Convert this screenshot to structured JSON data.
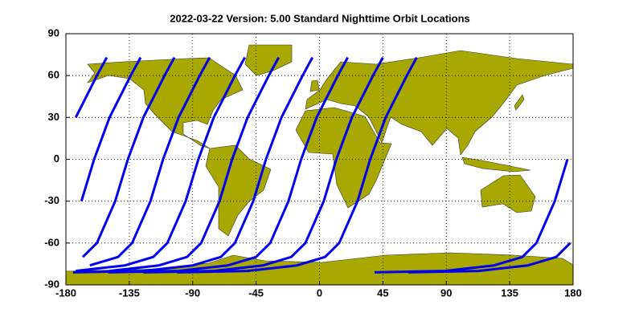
{
  "chart_data": {
    "type": "line",
    "title": "2022-03-22    Version: 5.00  Standard    Nighttime Orbit Locations",
    "xlim": [
      -180,
      180
    ],
    "ylim": [
      -90,
      90
    ],
    "xticks": [
      -180,
      -135,
      -90,
      -45,
      0,
      45,
      90,
      135,
      180
    ],
    "yticks": [
      -90,
      -60,
      -30,
      0,
      30,
      60,
      90
    ],
    "grid": true,
    "color": "#0000ee",
    "series": [
      {
        "x": [
          -151,
          -158,
          -173,
          null,
          176,
          167,
          154,
          144,
          124,
          89,
          39
        ],
        "values": [
          73,
          60,
          30,
          null,
          0,
          -30,
          -60,
          -70,
          -76,
          -80,
          -81
        ]
      },
      {
        "x": [
          -127,
          -134,
          -149,
          -160,
          -169,
          null,
          178,
          168,
          148,
          113,
          63
        ],
        "values": [
          73,
          60,
          30,
          0,
          -30,
          null,
          -60,
          -70,
          -76,
          -80,
          -81
        ]
      },
      {
        "x": [
          -103,
          -110,
          -125,
          -136,
          -145,
          -158,
          -168
        ],
        "values": [
          73,
          60,
          30,
          0,
          -30,
          -60,
          -70
        ]
      },
      {
        "x": [
          -78,
          -85,
          -100,
          -111,
          -120,
          -133,
          -143,
          -163
        ],
        "values": [
          73,
          60,
          30,
          0,
          -30,
          -60,
          -70,
          -76
        ]
      },
      {
        "x": [
          -53,
          -60,
          -75,
          -86,
          -95,
          -108,
          -118,
          -138,
          -173
        ],
        "values": [
          73,
          60,
          30,
          0,
          -30,
          -60,
          -70,
          -76,
          -80
        ]
      },
      {
        "x": [
          -29,
          -36,
          -51,
          -62,
          -71,
          -84,
          -94,
          -114,
          -149
        ],
        "values": [
          73,
          60,
          30,
          0,
          -30,
          -60,
          -70,
          -76,
          -80
        ]
      },
      {
        "x": [
          -5,
          -12,
          -27,
          -38,
          -47,
          -60,
          -70,
          -90,
          -125,
          -175
        ],
        "values": [
          73,
          60,
          30,
          0,
          -30,
          -60,
          -70,
          -76,
          -80,
          -81
        ]
      },
      {
        "x": [
          20,
          13,
          -2,
          -13,
          -22,
          -35,
          -45,
          -65,
          -100,
          -150
        ],
        "values": [
          73,
          60,
          30,
          0,
          -30,
          -60,
          -70,
          -76,
          -80,
          -81
        ]
      },
      {
        "x": [
          45,
          38,
          23,
          12,
          3,
          -10,
          -20,
          -40,
          -75,
          -125
        ],
        "values": [
          73,
          60,
          30,
          0,
          -30,
          -60,
          -70,
          -76,
          -80,
          -81
        ]
      },
      {
        "x": [
          69,
          62,
          47,
          36,
          27,
          14,
          4,
          -16,
          -51,
          -101
        ],
        "values": [
          73,
          60,
          30,
          0,
          -30,
          -60,
          -70,
          -76,
          -80,
          -81
        ]
      }
    ]
  }
}
